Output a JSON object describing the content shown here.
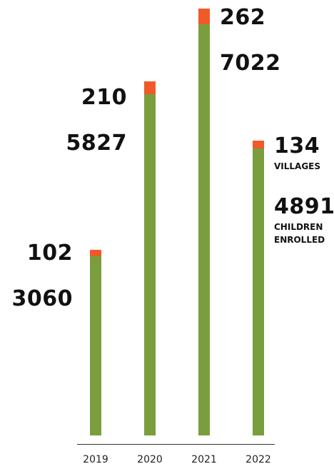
{
  "chart_data": {
    "type": "stacked-bar",
    "categories": [
      "2019",
      "2020",
      "2021",
      "2022"
    ],
    "series": [
      {
        "name": "CHILDREN ENROLLED",
        "color": "#7a9e3e",
        "values": [
          3060,
          5827,
          7022,
          4891
        ]
      },
      {
        "name": "VILLAGES",
        "color": "#f05a28",
        "values": [
          102,
          210,
          262,
          134
        ]
      }
    ]
  }
}
